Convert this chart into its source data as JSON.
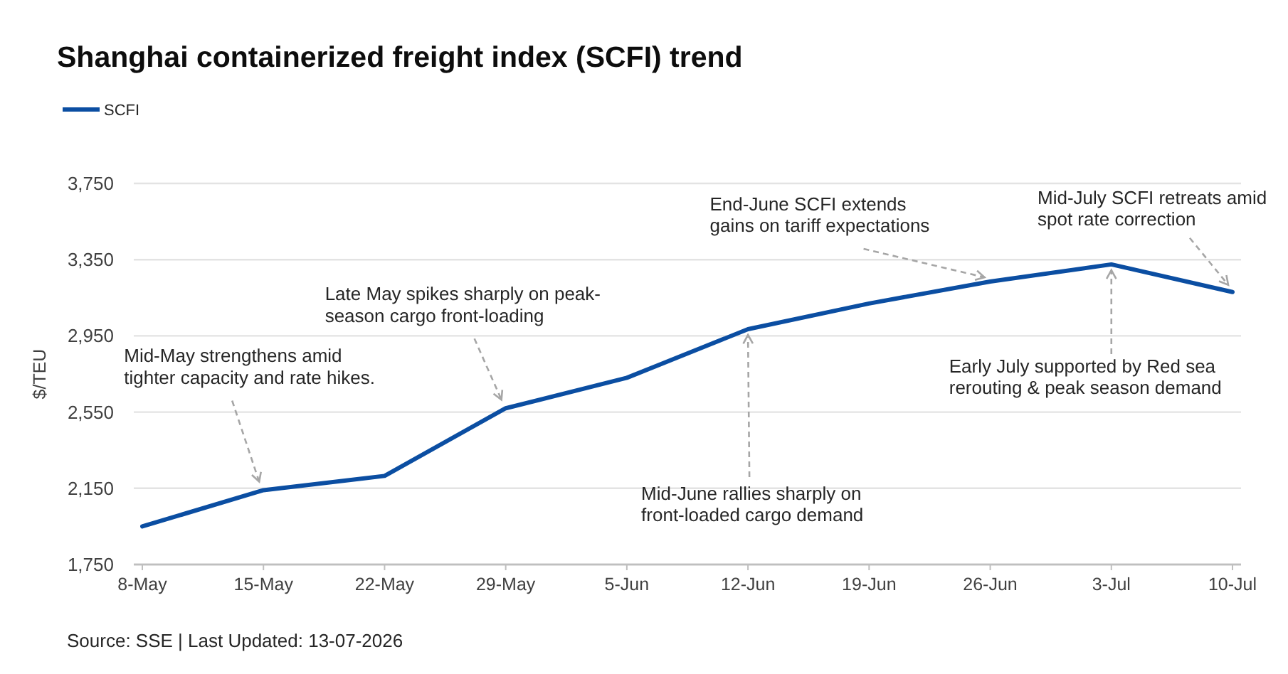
{
  "chart_data": {
    "type": "line",
    "title": "Shanghai containerized freight index (SCFI) trend",
    "ylabel": "$/TEU",
    "categories": [
      "8-May",
      "15-May",
      "22-May",
      "29-May",
      "5-Jun",
      "12-Jun",
      "19-Jun",
      "26-Jun",
      "3-Jul",
      "10-Jul"
    ],
    "series": [
      {
        "name": "SCFI",
        "color": "#0b4ea2",
        "values": [
          1950,
          2140,
          2215,
          2570,
          2730,
          2985,
          3120,
          3235,
          3325,
          3180
        ]
      }
    ],
    "ylim": [
      1750,
      3750
    ],
    "yticks": [
      {
        "value": 1750,
        "label": "1,750"
      },
      {
        "value": 2150,
        "label": "2,150"
      },
      {
        "value": 2550,
        "label": "2,550"
      },
      {
        "value": 2950,
        "label": "2,950"
      },
      {
        "value": 3350,
        "label": "3,350"
      },
      {
        "value": 3750,
        "label": "3,750"
      }
    ],
    "grid": "y",
    "legend": "top left",
    "annotations": [
      {
        "text": "Mid-May strengthens amid\ntighter capacity and rate hikes.",
        "x": "15-May",
        "y": 2140
      },
      {
        "text": "Late May spikes sharply on peak-\nseason cargo front-loading",
        "x": "29-May",
        "y": 2570
      },
      {
        "text": "Mid-June rallies sharply on\nfront-loaded cargo demand",
        "x": "12-Jun",
        "y": 2985
      },
      {
        "text": "End-June SCFI extends\ngains on tariff expectations",
        "x": "26-Jun",
        "y": 3235
      },
      {
        "text": "Mid-July SCFI retreats amid\nspot rate correction",
        "x": "10-Jul",
        "y": 3180
      },
      {
        "text": "Early July supported by Red sea\nrerouting & peak season demand",
        "x": "3-Jul",
        "y": 3325
      },
      "Source: SSE | Last Updated: 13-07-2026"
    ]
  }
}
